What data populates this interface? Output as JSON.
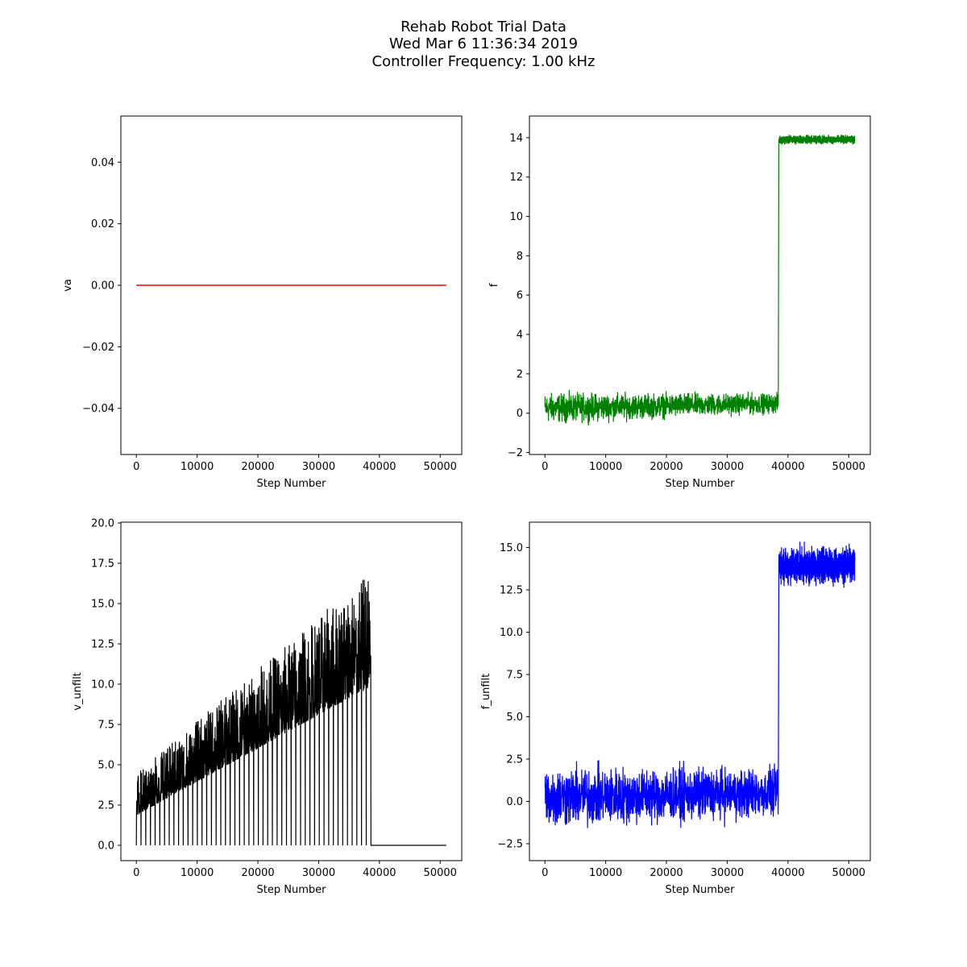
{
  "figure": {
    "title_lines": [
      "Rehab Robot Trial Data",
      "Wed Mar  6 11:36:34 2019",
      "Controller Frequency: 1.00 kHz"
    ]
  },
  "chart_data": [
    {
      "id": "va",
      "type": "line",
      "xlabel": "Step Number",
      "ylabel": "va",
      "color": "#ff0000",
      "xlim": [
        -2550,
        53550
      ],
      "ylim": [
        -0.055,
        0.055
      ],
      "xticks": [
        0,
        10000,
        20000,
        30000,
        40000,
        50000
      ],
      "yticks": [
        -0.04,
        -0.02,
        0.0,
        0.02,
        0.04
      ],
      "ytick_labels": [
        "−0.04",
        "−0.02",
        "0.00",
        "0.02",
        "0.04"
      ],
      "series": [
        {
          "x": [
            0,
            51000
          ],
          "y": [
            0,
            0
          ]
        }
      ]
    },
    {
      "id": "f",
      "type": "line",
      "xlabel": "Step Number",
      "ylabel": "f",
      "color": "#008000",
      "xlim": [
        -2550,
        53550
      ],
      "ylim": [
        -2.1,
        15.1
      ],
      "xticks": [
        0,
        10000,
        20000,
        30000,
        40000,
        50000
      ],
      "yticks": [
        -2,
        0,
        2,
        4,
        6,
        8,
        10,
        12,
        14
      ],
      "ytick_labels": [
        "−2",
        "0",
        "2",
        "4",
        "6",
        "8",
        "10",
        "12",
        "14"
      ],
      "series": [
        {
          "x": [
            0,
            38400,
            38500,
            51000
          ],
          "y": [
            0.3,
            0.7,
            13.95,
            13.9
          ],
          "noise": [
            {
              "x0": 0,
              "x1": 38400,
              "lo": [
                -0.8,
                -0.2
              ],
              "hi": [
                1.3,
                1.2
              ]
            },
            {
              "x0": 38500,
              "x1": 51000,
              "lo": [
                13.6,
                13.6
              ],
              "hi": [
                14.2,
                14.2
              ]
            }
          ]
        }
      ]
    },
    {
      "id": "v_unfilt",
      "type": "line",
      "xlabel": "Step Number",
      "ylabel": "v_unfilt",
      "color": "#000000",
      "xlim": [
        -2550,
        53550
      ],
      "ylim": [
        -0.95,
        20.05
      ],
      "xticks": [
        0,
        10000,
        20000,
        30000,
        40000,
        50000
      ],
      "yticks": [
        0.0,
        2.5,
        5.0,
        7.5,
        10.0,
        12.5,
        15.0,
        17.5,
        20.0
      ],
      "ytick_labels": [
        "0.0",
        "2.5",
        "5.0",
        "7.5",
        "10.0",
        "12.5",
        "15.0",
        "17.5",
        "20.0"
      ],
      "series": [
        {
          "x": [
            0,
            2000,
            10000,
            20000,
            30000,
            38600,
            38700,
            51000
          ],
          "y": [
            3.0,
            1.7,
            2.5,
            5.5,
            9.0,
            12.0,
            0.0,
            0.0
          ],
          "noise": [
            {
              "x0": 0,
              "x1": 38600,
              "lo": [
                1.0,
                7.5
              ],
              "hi": [
                4.5,
                17.0
              ]
            }
          ]
        }
      ]
    },
    {
      "id": "f_unfilt",
      "type": "line",
      "xlabel": "Step Number",
      "ylabel": "f_unfilt",
      "color": "#0000ff",
      "xlim": [
        -2550,
        53550
      ],
      "ylim": [
        -3.5,
        16.5
      ],
      "xticks": [
        0,
        10000,
        20000,
        30000,
        40000,
        50000
      ],
      "yticks": [
        -2.5,
        0.0,
        2.5,
        5.0,
        7.5,
        10.0,
        12.5,
        15.0
      ],
      "ytick_labels": [
        "−2.5",
        "0.0",
        "2.5",
        "5.0",
        "7.5",
        "10.0",
        "12.5",
        "15.0"
      ],
      "series": [
        {
          "x": [
            0,
            38400,
            38500,
            51000
          ],
          "y": [
            0.3,
            0.6,
            13.9,
            13.9
          ],
          "noise": [
            {
              "x0": 0,
              "x1": 38400,
              "lo": [
                -2.3,
                -1.5
              ],
              "hi": [
                2.8,
                2.5
              ]
            },
            {
              "x0": 38500,
              "x1": 51000,
              "lo": [
                12.5,
                12.5
              ],
              "hi": [
                15.4,
                15.4
              ]
            }
          ]
        }
      ]
    }
  ]
}
